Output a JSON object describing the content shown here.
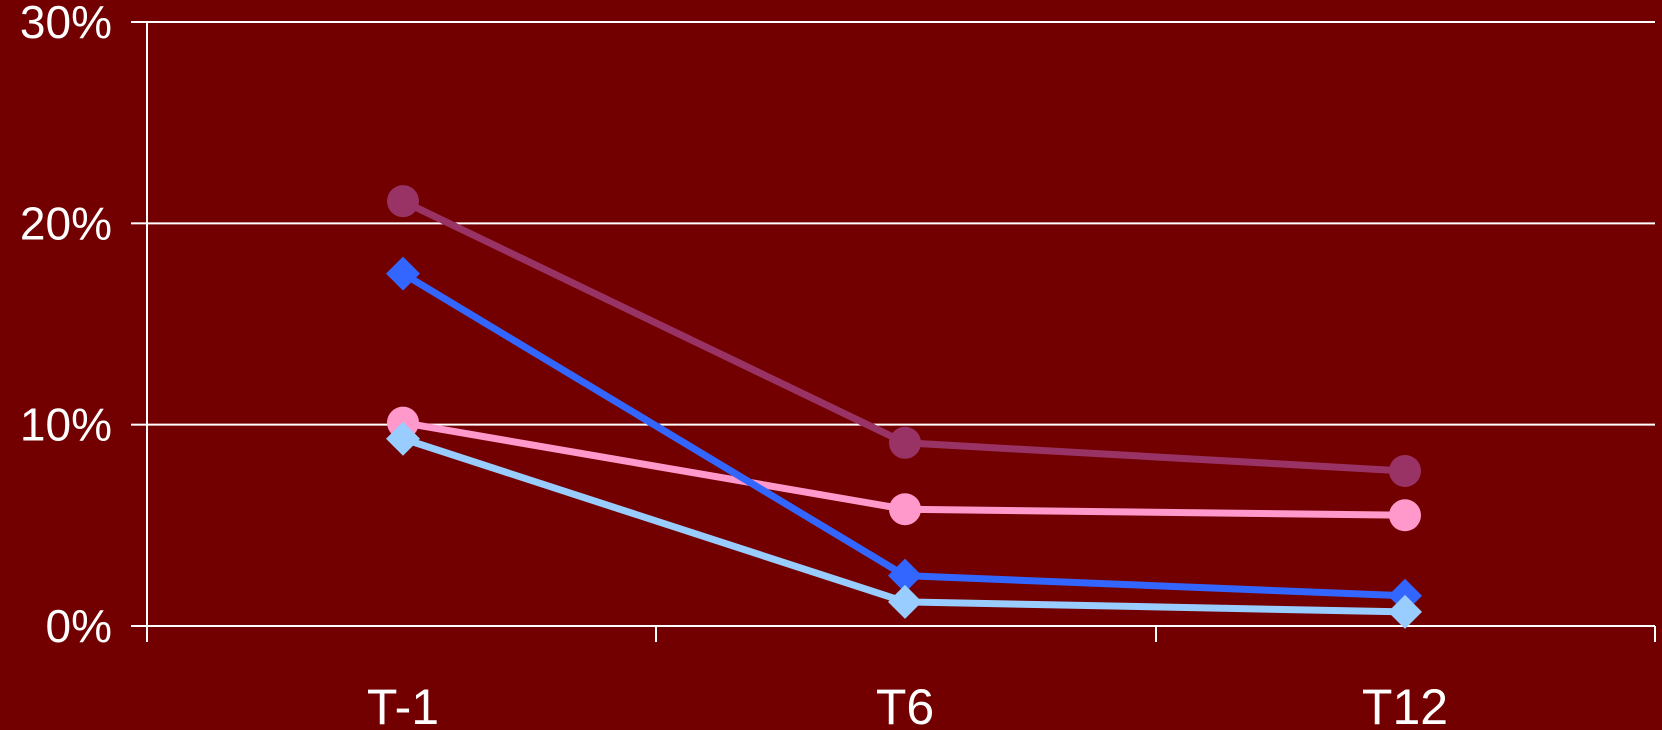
{
  "colors": {
    "background": "#730000",
    "axis": "#ffffff",
    "grid": "#ffffff",
    "text": "#ffffff"
  },
  "chart_data": {
    "type": "line",
    "title": "",
    "xlabel": "",
    "ylabel": "",
    "categories": [
      "T-1",
      "T6",
      "T12"
    ],
    "ylim": [
      0,
      30
    ],
    "yticks": [
      0,
      10,
      20,
      30
    ],
    "ytick_labels": [
      "0%",
      "10%",
      "20%",
      "30%"
    ],
    "grid": true,
    "legend": "none",
    "series": [
      {
        "color": "#993366",
        "marker": "circle",
        "values": [
          21.1,
          9.1,
          7.7
        ]
      },
      {
        "color": "#ff99cc",
        "marker": "circle",
        "values": [
          10.1,
          5.8,
          5.5
        ]
      },
      {
        "color": "#3366ff",
        "marker": "diamond",
        "values": [
          17.5,
          2.5,
          1.5
        ]
      },
      {
        "color": "#99ccff",
        "marker": "diamond",
        "values": [
          9.3,
          1.2,
          0.7
        ]
      }
    ]
  }
}
